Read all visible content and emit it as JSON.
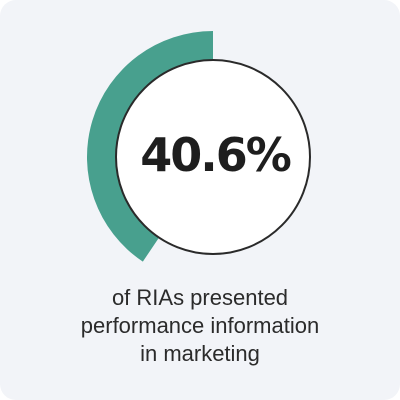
{
  "chart_data": {
    "type": "pie",
    "value_percent": 40.6,
    "value_label": "40.6%",
    "caption_lines": [
      "of RIAs presented",
      "performance information",
      "in marketing"
    ],
    "colors": {
      "progress": "#48a08e",
      "ring": "#2a2a2a",
      "card_background": "#f2f4f8",
      "inner_background": "#ffffff"
    }
  }
}
